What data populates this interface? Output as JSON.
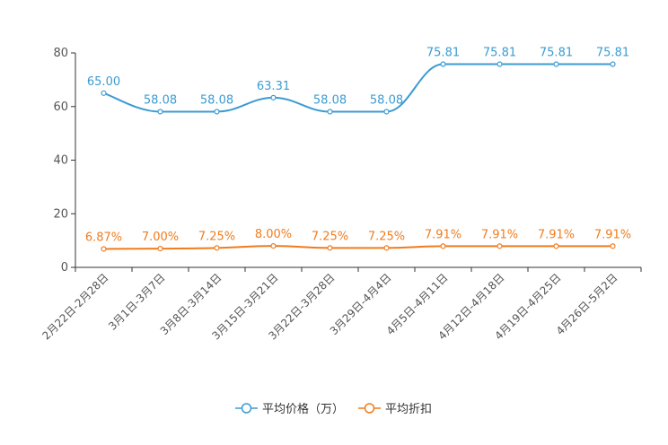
{
  "chart_data": {
    "type": "line",
    "title": "",
    "xlabel": "",
    "ylabel": "",
    "ylim": [
      0,
      80
    ],
    "yticks": [
      "0",
      "20",
      "40",
      "60",
      "80"
    ],
    "grid": false,
    "legend_position": "bottom-center",
    "categories": [
      "2月22日-2月28日",
      "3月1日-3月7日",
      "3月8日-3月14日",
      "3月15日-3月21日",
      "3月22日-3月28日",
      "3月29日-4月4日",
      "4月5日-4月11日",
      "4月12日-4月18日",
      "4月19日-4月25日",
      "4月26日-5月2日"
    ],
    "series": [
      {
        "name": "平均价格（万）",
        "color": "#3b9bd1",
        "values": [
          65.0,
          58.08,
          58.08,
          63.31,
          58.08,
          58.08,
          75.81,
          75.81,
          75.81,
          75.81
        ],
        "labels": [
          "65.00",
          "58.08",
          "58.08",
          "63.31",
          "58.08",
          "58.08",
          "75.81",
          "75.81",
          "75.81",
          "75.81"
        ]
      },
      {
        "name": "平均折扣",
        "color": "#f07c1e",
        "values": [
          6.87,
          7.0,
          7.25,
          8.0,
          7.25,
          7.25,
          7.91,
          7.91,
          7.91,
          7.91
        ],
        "labels": [
          "6.87%",
          "7.00%",
          "7.25%",
          "8.00%",
          "7.25%",
          "7.25%",
          "7.91%",
          "7.91%",
          "7.91%",
          "7.91%"
        ]
      }
    ]
  }
}
